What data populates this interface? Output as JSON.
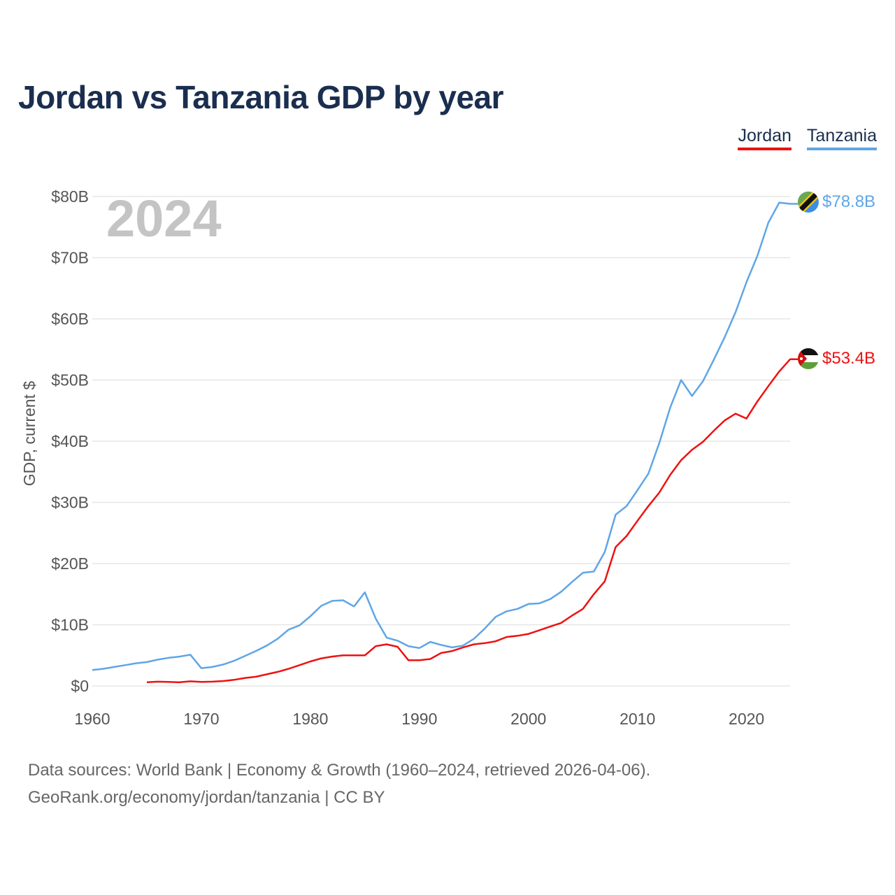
{
  "title": "Jordan vs Tanzania GDP by year",
  "legend": {
    "jordan": "Jordan",
    "tanzania": "Tanzania"
  },
  "year_label": "2024",
  "footer": {
    "line1": "Data sources: World Bank | Economy & Growth (1960–2024, retrieved 2026-04-06).",
    "line2": "GeoRank.org/economy/jordan/tanzania | CC BY"
  },
  "chart_data": {
    "type": "line",
    "title": "Jordan vs Tanzania GDP by year",
    "xlabel": "",
    "ylabel": "GDP, current $",
    "xlim": [
      1960,
      2024
    ],
    "ylim": [
      0,
      80
    ],
    "y_unit": "billion USD",
    "grid": true,
    "legend_position": "top-right",
    "x_ticks": [
      1960,
      1970,
      1980,
      1990,
      2000,
      2010,
      2020
    ],
    "y_ticks": [
      {
        "value": 0,
        "label": "$0"
      },
      {
        "value": 10,
        "label": "$10B"
      },
      {
        "value": 20,
        "label": "$20B"
      },
      {
        "value": 30,
        "label": "$30B"
      },
      {
        "value": 40,
        "label": "$40B"
      },
      {
        "value": 50,
        "label": "$50B"
      },
      {
        "value": 60,
        "label": "$60B"
      },
      {
        "value": 70,
        "label": "$70B"
      },
      {
        "value": 80,
        "label": "$80B"
      }
    ],
    "series": [
      {
        "name": "Jordan",
        "color": "#ee1111",
        "end_label": "$53.4B",
        "x": [
          1965,
          1966,
          1967,
          1968,
          1969,
          1970,
          1971,
          1972,
          1973,
          1974,
          1975,
          1976,
          1977,
          1978,
          1979,
          1980,
          1981,
          1982,
          1983,
          1984,
          1985,
          1986,
          1987,
          1988,
          1989,
          1990,
          1991,
          1992,
          1993,
          1994,
          1995,
          1996,
          1997,
          1998,
          1999,
          2000,
          2001,
          2002,
          2003,
          2004,
          2005,
          2006,
          2007,
          2008,
          2009,
          2010,
          2011,
          2012,
          2013,
          2014,
          2015,
          2016,
          2017,
          2018,
          2019,
          2020,
          2021,
          2022,
          2023,
          2024
        ],
        "values": [
          0.6,
          0.7,
          0.65,
          0.6,
          0.75,
          0.65,
          0.7,
          0.8,
          1.0,
          1.3,
          1.5,
          1.9,
          2.3,
          2.8,
          3.4,
          4.0,
          4.5,
          4.8,
          5.0,
          5.0,
          5.0,
          6.5,
          6.8,
          6.4,
          4.2,
          4.2,
          4.4,
          5.4,
          5.7,
          6.3,
          6.8,
          7.0,
          7.3,
          8.0,
          8.2,
          8.5,
          9.1,
          9.7,
          10.3,
          11.5,
          12.6,
          15.0,
          17.1,
          22.7,
          24.5,
          27.0,
          29.4,
          31.6,
          34.5,
          36.9,
          38.6,
          39.9,
          41.7,
          43.4,
          44.5,
          43.7,
          46.5,
          49.0,
          51.4,
          53.4
        ]
      },
      {
        "name": "Tanzania",
        "color": "#5fa6e6",
        "end_label": "$78.8B",
        "x": [
          1960,
          1961,
          1962,
          1963,
          1964,
          1965,
          1966,
          1967,
          1968,
          1969,
          1970,
          1971,
          1972,
          1973,
          1974,
          1975,
          1976,
          1977,
          1978,
          1979,
          1980,
          1981,
          1982,
          1983,
          1984,
          1985,
          1986,
          1987,
          1988,
          1989,
          1990,
          1991,
          1992,
          1993,
          1994,
          1995,
          1996,
          1997,
          1998,
          1999,
          2000,
          2001,
          2002,
          2003,
          2004,
          2005,
          2006,
          2007,
          2008,
          2009,
          2010,
          2011,
          2012,
          2013,
          2014,
          2015,
          2016,
          2017,
          2018,
          2019,
          2020,
          2021,
          2022,
          2023,
          2024
        ],
        "values": [
          2.6,
          2.8,
          3.1,
          3.4,
          3.7,
          3.9,
          4.3,
          4.6,
          4.8,
          5.1,
          2.9,
          3.1,
          3.5,
          4.1,
          4.9,
          5.7,
          6.6,
          7.7,
          9.2,
          9.9,
          11.4,
          13.1,
          13.9,
          14.0,
          13.0,
          15.3,
          11.0,
          7.9,
          7.4,
          6.5,
          6.2,
          7.2,
          6.7,
          6.3,
          6.6,
          7.7,
          9.4,
          11.3,
          12.2,
          12.6,
          13.4,
          13.5,
          14.2,
          15.4,
          17.0,
          18.5,
          18.7,
          21.9,
          28.0,
          29.4,
          32.0,
          34.7,
          39.7,
          45.5,
          50.0,
          47.4,
          49.8,
          53.3,
          57.0,
          61.1,
          66.0,
          70.3,
          75.7,
          79.0,
          78.8
        ]
      }
    ]
  }
}
